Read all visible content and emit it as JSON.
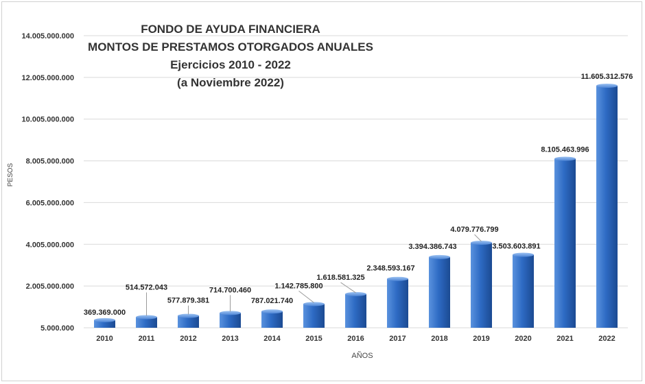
{
  "chart_data": {
    "type": "bar",
    "title_lines": [
      "FONDO DE AYUDA FINANCIERA",
      "MONTOS DE PRESTAMOS OTORGADOS ANUALES",
      "Ejercicios 2010 - 2022",
      "(a Noviembre 2022)"
    ],
    "xlabel": "AÑOS",
    "ylabel": "PESOS",
    "categories": [
      "2010",
      "2011",
      "2012",
      "2013",
      "2014",
      "2015",
      "2016",
      "2017",
      "2018",
      "2019",
      "2020",
      "2021",
      "2022"
    ],
    "values": [
      369369000,
      514572043,
      577879381,
      714700460,
      787021740,
      1142785800,
      1618581325,
      2348593167,
      3394386743,
      4079776799,
      3503603891,
      8105463996,
      11605312576
    ],
    "value_labels": [
      "369.369.000",
      "514.572.043",
      "577.879.381",
      "714.700.460",
      "787.021.740",
      "1.142.785.800",
      "1.618.581.325",
      "2.348.593.167",
      "3.394.386.743",
      "4.079.776.799",
      "3.503.603.891",
      "8.105.463.996",
      "11.605.312.576"
    ],
    "y_ticks": [
      5000000,
      2005000000,
      4005000000,
      6005000000,
      8005000000,
      10005000000,
      12005000000,
      14005000000
    ],
    "y_tick_labels": [
      "5.000.000",
      "2.005.000.000",
      "4.005.000.000",
      "6.005.000.000",
      "8.005.000.000",
      "10.005.000.000",
      "12.005.000.000",
      "14.005.000.000"
    ],
    "ylim": [
      5000000,
      14005000000
    ],
    "grid": true,
    "legend": "none",
    "bar_color": "#2e6bc4"
  }
}
